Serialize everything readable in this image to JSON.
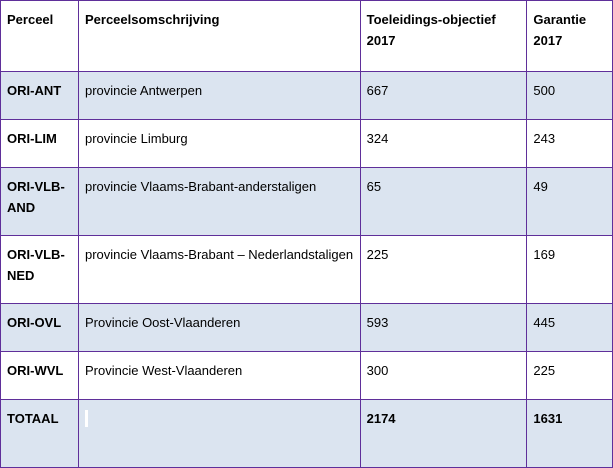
{
  "headers": [
    "Perceel",
    "Perceelsomschrijving",
    "Toeleidings-objectief 2017",
    "Garantie 2017"
  ],
  "rows": [
    {
      "code": "ORI-ANT",
      "description": "provincie Antwerpen",
      "objective": "667",
      "guarantee": "500"
    },
    {
      "code": "ORI-LIM",
      "description": "provincie Limburg",
      "objective": "324",
      "guarantee": "243"
    },
    {
      "code": "ORI-VLB-AND",
      "description": "provincie Vlaams-Brabant-anderstaligen",
      "objective": "65",
      "guarantee": "49"
    },
    {
      "code": "ORI-VLB-NED",
      "description": "provincie Vlaams-Brabant – Nederlandstaligen",
      "objective": "225",
      "guarantee": "169"
    },
    {
      "code": "ORI-OVL",
      "description": "Provincie Oost-Vlaanderen",
      "objective": "593",
      "guarantee": "445"
    },
    {
      "code": "ORI-WVL",
      "description": "Provincie West-Vlaanderen",
      "objective": "300",
      "guarantee": "225"
    }
  ],
  "total": {
    "label": "TOTAAL",
    "description": "",
    "objective": "2174",
    "guarantee": "1631"
  },
  "colors": {
    "border": "#5f2f9a",
    "shade": "#dbe4f0"
  }
}
